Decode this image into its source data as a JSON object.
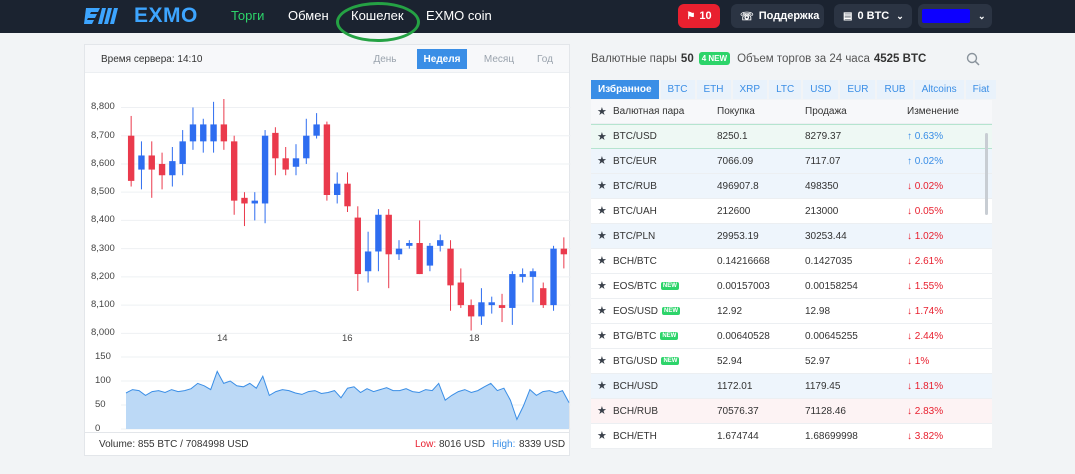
{
  "header": {
    "logo_text": "EXMO",
    "nav": [
      "Торги",
      "Обмен",
      "Кошелек",
      "EXMO coin"
    ],
    "notifications": "10",
    "support": "Поддержка",
    "balance": "0 BTC"
  },
  "chart": {
    "server_time": "Время сервера: 14:10",
    "ranges": [
      "День",
      "Неделя",
      "Месяц",
      "Год"
    ],
    "active_range": "Неделя",
    "volume_label": "Volume: 855 BTC / 7084998 USD",
    "low_label": "Low:",
    "low_value": "8016 USD",
    "high_label": "High:",
    "high_value": "8339 USD"
  },
  "chart_data": [
    {
      "type": "candlestick",
      "y_ticks": [
        "8,800",
        "8,700",
        "8,600",
        "8,500",
        "8,400",
        "8,300",
        "8,200",
        "8,100",
        "8,000"
      ],
      "x_ticks": [
        "14",
        "16",
        "18"
      ],
      "ylim": [
        7980,
        8830
      ],
      "up_color": "#2e6df0",
      "down_color": "#ea3a4c",
      "candles": [
        {
          "o": 8700,
          "c": 8540,
          "h": 8770,
          "l": 8520
        },
        {
          "o": 8580,
          "c": 8630,
          "h": 8680,
          "l": 8510
        },
        {
          "o": 8630,
          "c": 8580,
          "h": 8680,
          "l": 8480
        },
        {
          "o": 8600,
          "c": 8560,
          "h": 8640,
          "l": 8510
        },
        {
          "o": 8560,
          "c": 8610,
          "h": 8660,
          "l": 8520
        },
        {
          "o": 8600,
          "c": 8680,
          "h": 8720,
          "l": 8560
        },
        {
          "o": 8680,
          "c": 8740,
          "h": 8800,
          "l": 8650
        },
        {
          "o": 8680,
          "c": 8740,
          "h": 8760,
          "l": 8640
        },
        {
          "o": 8680,
          "c": 8740,
          "h": 8820,
          "l": 8640
        },
        {
          "o": 8740,
          "c": 8680,
          "h": 8830,
          "l": 8650
        },
        {
          "o": 8680,
          "c": 8470,
          "h": 8700,
          "l": 8420
        },
        {
          "o": 8480,
          "c": 8460,
          "h": 8500,
          "l": 8380
        },
        {
          "o": 8460,
          "c": 8470,
          "h": 8500,
          "l": 8400
        },
        {
          "o": 8460,
          "c": 8700,
          "h": 8720,
          "l": 8390
        },
        {
          "o": 8710,
          "c": 8620,
          "h": 8730,
          "l": 8560
        },
        {
          "o": 8620,
          "c": 8580,
          "h": 8660,
          "l": 8560
        },
        {
          "o": 8590,
          "c": 8620,
          "h": 8670,
          "l": 8560
        },
        {
          "o": 8620,
          "c": 8700,
          "h": 8760,
          "l": 8600
        },
        {
          "o": 8700,
          "c": 8740,
          "h": 8780,
          "l": 8690
        },
        {
          "o": 8740,
          "c": 8490,
          "h": 8750,
          "l": 8470
        },
        {
          "o": 8490,
          "c": 8530,
          "h": 8570,
          "l": 8460
        },
        {
          "o": 8530,
          "c": 8450,
          "h": 8570,
          "l": 8430
        },
        {
          "o": 8410,
          "c": 8210,
          "h": 8450,
          "l": 8150
        },
        {
          "o": 8220,
          "c": 8290,
          "h": 8360,
          "l": 8180
        },
        {
          "o": 8290,
          "c": 8420,
          "h": 8440,
          "l": 8220
        },
        {
          "o": 8420,
          "c": 8280,
          "h": 8440,
          "l": 8160
        },
        {
          "o": 8280,
          "c": 8300,
          "h": 8330,
          "l": 8260
        },
        {
          "o": 8310,
          "c": 8320,
          "h": 8330,
          "l": 8300
        },
        {
          "o": 8320,
          "c": 8210,
          "h": 8400,
          "l": 8210
        },
        {
          "o": 8240,
          "c": 8310,
          "h": 8320,
          "l": 8220
        },
        {
          "o": 8310,
          "c": 8330,
          "h": 8350,
          "l": 8290
        },
        {
          "o": 8300,
          "c": 8170,
          "h": 8330,
          "l": 8080
        },
        {
          "o": 8180,
          "c": 8100,
          "h": 8230,
          "l": 8090
        },
        {
          "o": 8100,
          "c": 8060,
          "h": 8120,
          "l": 8010
        },
        {
          "o": 8060,
          "c": 8110,
          "h": 8160,
          "l": 8030
        },
        {
          "o": 8100,
          "c": 8110,
          "h": 8130,
          "l": 8070
        },
        {
          "o": 8100,
          "c": 8090,
          "h": 8140,
          "l": 8040
        },
        {
          "o": 8090,
          "c": 8210,
          "h": 8220,
          "l": 8030
        },
        {
          "o": 8200,
          "c": 8210,
          "h": 8230,
          "l": 8180
        },
        {
          "o": 8200,
          "c": 8220,
          "h": 8230,
          "l": 8110
        },
        {
          "o": 8160,
          "c": 8100,
          "h": 8180,
          "l": 8090
        },
        {
          "o": 8100,
          "c": 8300,
          "h": 8310,
          "l": 8080
        },
        {
          "o": 8300,
          "c": 8280,
          "h": 8340,
          "l": 8230
        }
      ]
    },
    {
      "type": "area",
      "y_ticks": [
        "150",
        "100",
        "50",
        "0"
      ],
      "ylim": [
        0,
        150
      ],
      "color": "#3a8ee6",
      "values": [
        75,
        82,
        80,
        70,
        78,
        80,
        76,
        82,
        78,
        80,
        84,
        95,
        90,
        82,
        120,
        95,
        100,
        90,
        88,
        95,
        85,
        110,
        70,
        78,
        82,
        80,
        75,
        72,
        78,
        80,
        74,
        76,
        80,
        65,
        85,
        88,
        76,
        84,
        78,
        82,
        86,
        80,
        80,
        84,
        78,
        76,
        82,
        80,
        95,
        60,
        70,
        78,
        82,
        76,
        80,
        88,
        95,
        80,
        85,
        60,
        20,
        48,
        82,
        70,
        78,
        80,
        75,
        80,
        55
      ]
    }
  ],
  "market": {
    "pairs_label": "Валютные пары",
    "pairs_count": "50",
    "new_badge": "4 NEW",
    "volume_label": "Объем торгов за 24 часа",
    "volume_value": "4525 BTC",
    "tabs": [
      "Избранное",
      "BTC",
      "ETH",
      "XRP",
      "LTC",
      "USD",
      "EUR",
      "RUB",
      "Altcoins",
      "Fiat"
    ],
    "active_tab": "Избранное",
    "columns": [
      "Валютная пара",
      "Покупка",
      "Продажа",
      "Изменение"
    ],
    "new_tag": "NEW",
    "rows": [
      {
        "pair": "BTC/USD",
        "buy": "8250.1",
        "sell": "8279.37",
        "change": "↑ 0.63%",
        "dir": "up",
        "style": "sel",
        "new": false
      },
      {
        "pair": "BTC/EUR",
        "buy": "7066.09",
        "sell": "7117.07",
        "change": "↑ 0.02%",
        "dir": "up",
        "style": "alt",
        "new": false
      },
      {
        "pair": "BTC/RUB",
        "buy": "496907.8",
        "sell": "498350",
        "change": "↓ 0.02%",
        "dir": "dn",
        "style": "alt",
        "new": false
      },
      {
        "pair": "BTC/UAH",
        "buy": "212600",
        "sell": "213000",
        "change": "↓ 0.05%",
        "dir": "dn",
        "style": "",
        "new": false
      },
      {
        "pair": "BTC/PLN",
        "buy": "29953.19",
        "sell": "30253.44",
        "change": "↓ 1.02%",
        "dir": "dn",
        "style": "alt",
        "new": false
      },
      {
        "pair": "BCH/BTC",
        "buy": "0.14216668",
        "sell": "0.1427035",
        "change": "↓ 2.61%",
        "dir": "dn",
        "style": "",
        "new": false
      },
      {
        "pair": "EOS/BTC",
        "buy": "0.00157003",
        "sell": "0.00158254",
        "change": "↓ 1.55%",
        "dir": "dn",
        "style": "",
        "new": true
      },
      {
        "pair": "EOS/USD",
        "buy": "12.92",
        "sell": "12.98",
        "change": "↓ 1.74%",
        "dir": "dn",
        "style": "",
        "new": true
      },
      {
        "pair": "BTG/BTC",
        "buy": "0.00640528",
        "sell": "0.00645255",
        "change": "↓ 2.44%",
        "dir": "dn",
        "style": "",
        "new": true
      },
      {
        "pair": "BTG/USD",
        "buy": "52.94",
        "sell": "52.97",
        "change": "↓ 1%",
        "dir": "dn",
        "style": "",
        "new": true
      },
      {
        "pair": "BCH/USD",
        "buy": "1172.01",
        "sell": "1179.45",
        "change": "↓ 1.81%",
        "dir": "dn",
        "style": "alt",
        "new": false
      },
      {
        "pair": "BCH/RUB",
        "buy": "70576.37",
        "sell": "71128.46",
        "change": "↓ 2.83%",
        "dir": "dn",
        "style": "pink",
        "new": false
      },
      {
        "pair": "BCH/ETH",
        "buy": "1.674744",
        "sell": "1.68699998",
        "change": "↓ 3.82%",
        "dir": "dn",
        "style": "",
        "new": false
      }
    ]
  }
}
